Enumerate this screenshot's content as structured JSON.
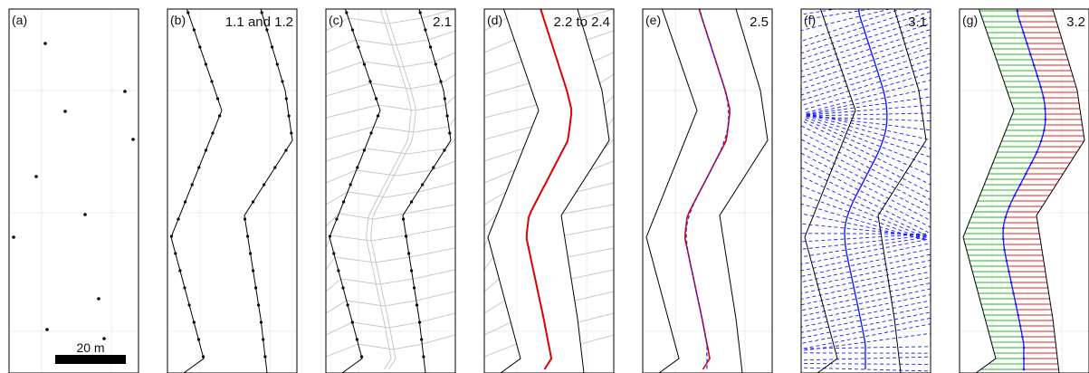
{
  "colors": {
    "frame": "#000000",
    "grid": "#ececec",
    "voronoi": "#c8c8c8",
    "road": "#000000",
    "centerline": "#e00000",
    "smoothed": "#1a1aff",
    "left_fill": "#22bb22",
    "right_fill": "#e02020"
  },
  "panels": [
    {
      "id": "a",
      "label": "(a)",
      "step": ""
    },
    {
      "id": "b",
      "label": "(b)",
      "step": "1.1 and 1.2"
    },
    {
      "id": "c",
      "label": "(c)",
      "step": "2.1"
    },
    {
      "id": "d",
      "label": "(d)",
      "step": "2.2 to 2.4"
    },
    {
      "id": "e",
      "label": "(e)",
      "step": "2.5"
    },
    {
      "id": "f",
      "label": "(f)",
      "step": "3.1"
    },
    {
      "id": "g",
      "label": "(g)",
      "step": "3.2"
    }
  ],
  "scale_bar": {
    "label": "20 m"
  }
}
